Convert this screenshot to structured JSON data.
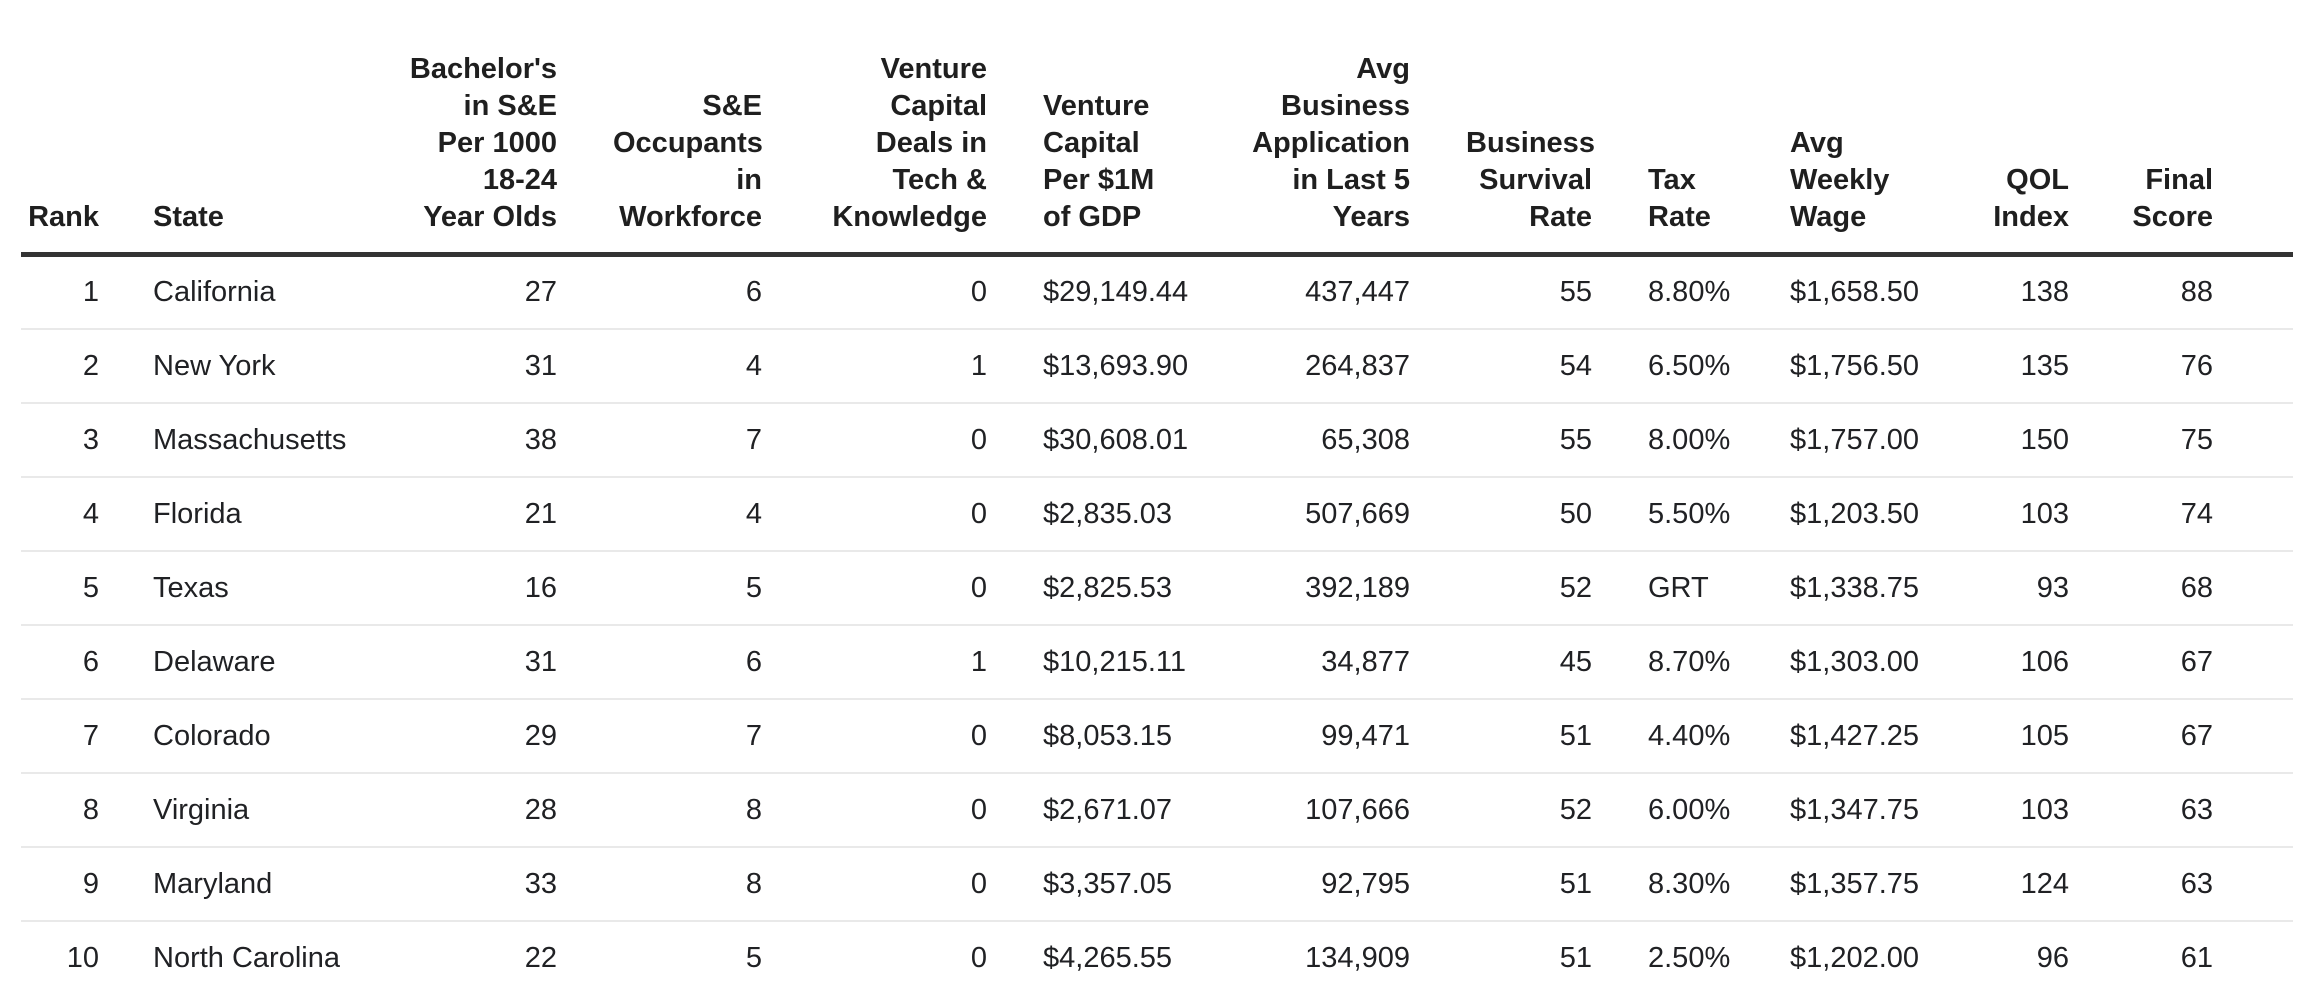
{
  "chart_data": {
    "type": "table",
    "columns": [
      {
        "id": "rank",
        "label": "Rank",
        "align": "right"
      },
      {
        "id": "state",
        "label": "State",
        "align": "left"
      },
      {
        "id": "bachelors-in-se-per-1000-18-24-year-olds",
        "label": "Bachelor's\nin S&E\nPer 1000\n18-24\nYear Olds",
        "align": "right"
      },
      {
        "id": "se-occupants-in-workforce",
        "label": "S&E\nOccupants\nin\nWorkforce",
        "align": "right"
      },
      {
        "id": "venture-capital-deals-in-tech-knowledge",
        "label": "Venture\nCapital\nDeals in\nTech &\nKnowledge",
        "align": "right"
      },
      {
        "id": "venture-capital-per-1m-of-gdp",
        "label": "Venture\nCapital\nPer $1M\nof GDP",
        "align": "left"
      },
      {
        "id": "avg-business-application-in-last-5-years",
        "label": "Avg\nBusiness\nApplication\nin Last 5\nYears",
        "align": "right"
      },
      {
        "id": "business-survival-rate",
        "label": "Business\nSurvival\nRate",
        "align": "right"
      },
      {
        "id": "tax-rate",
        "label": "Tax\nRate",
        "align": "left"
      },
      {
        "id": "avg-weekly-wage",
        "label": "Avg\nWeekly\nWage",
        "align": "left"
      },
      {
        "id": "qol-index",
        "label": "QOL\nIndex",
        "align": "right"
      },
      {
        "id": "final-score",
        "label": "Final\nScore",
        "align": "right"
      }
    ],
    "rows": [
      [
        "1",
        "California",
        "27",
        "6",
        "0",
        "$29,149.44",
        "437,447",
        "55",
        "8.80%",
        "$1,658.50",
        "138",
        "88"
      ],
      [
        "2",
        "New York",
        "31",
        "4",
        "1",
        "$13,693.90",
        "264,837",
        "54",
        "6.50%",
        "$1,756.50",
        "135",
        "76"
      ],
      [
        "3",
        "Massachusetts",
        "38",
        "7",
        "0",
        "$30,608.01",
        "65,308",
        "55",
        "8.00%",
        "$1,757.00",
        "150",
        "75"
      ],
      [
        "4",
        "Florida",
        "21",
        "4",
        "0",
        "$2,835.03",
        "507,669",
        "50",
        "5.50%",
        "$1,203.50",
        "103",
        "74"
      ],
      [
        "5",
        "Texas",
        "16",
        "5",
        "0",
        "$2,825.53",
        "392,189",
        "52",
        "GRT",
        "$1,338.75",
        "93",
        "68"
      ],
      [
        "6",
        "Delaware",
        "31",
        "6",
        "1",
        "$10,215.11",
        "34,877",
        "45",
        "8.70%",
        "$1,303.00",
        "106",
        "67"
      ],
      [
        "7",
        "Colorado",
        "29",
        "7",
        "0",
        "$8,053.15",
        "99,471",
        "51",
        "4.40%",
        "$1,427.25",
        "105",
        "67"
      ],
      [
        "8",
        "Virginia",
        "28",
        "8",
        "0",
        "$2,671.07",
        "107,666",
        "52",
        "6.00%",
        "$1,347.75",
        "103",
        "63"
      ],
      [
        "9",
        "Maryland",
        "33",
        "8",
        "0",
        "$3,357.05",
        "92,795",
        "51",
        "8.30%",
        "$1,357.75",
        "124",
        "63"
      ],
      [
        "10",
        "North Carolina",
        "22",
        "5",
        "0",
        "$4,265.55",
        "134,909",
        "51",
        "2.50%",
        "$1,202.00",
        "96",
        "61"
      ]
    ],
    "layout": {
      "header_rule_color": "#333333",
      "row_divider_color": "#e9e9e9",
      "text_color": "#202124",
      "background_color": "#ffffff"
    }
  }
}
